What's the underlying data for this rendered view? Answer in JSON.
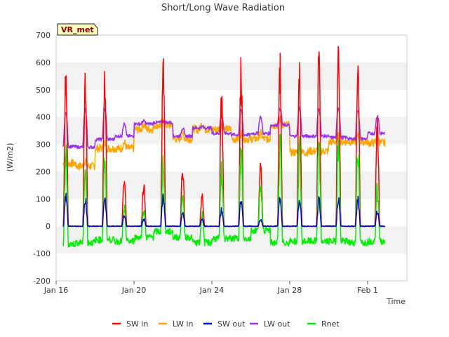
{
  "chart_data": {
    "type": "line",
    "title": "Short/Long Wave Radiation",
    "xlabel": "Time",
    "ylabel": "(W/m2)",
    "badge": "VR_met",
    "ylim": [
      -200,
      700
    ],
    "yticks": [
      -200,
      -100,
      0,
      100,
      200,
      300,
      400,
      500,
      600,
      700
    ],
    "xlim": [
      0,
      22.5
    ],
    "xticks": [
      {
        "label": "Jan 16",
        "day": 0
      },
      {
        "label": "Jan 20",
        "day": 4
      },
      {
        "label": "Jan 24",
        "day": 8
      },
      {
        "label": "Jan 28",
        "day": 12
      },
      {
        "label": "Feb 1",
        "day": 16
      }
    ],
    "grid": "horizontal alternating bands",
    "legend_position": "bottom",
    "series": [
      {
        "name": "SW in",
        "color": "#ff0000",
        "daily_peak": [
          565,
          545,
          545,
          165,
          145,
          555,
          200,
          105,
          450,
          550,
          210,
          575,
          575,
          590,
          615,
          595,
          360
        ]
      },
      {
        "name": "LW in",
        "color": "#ffa500",
        "daily_level": [
          230,
          220,
          285,
          285,
          355,
          370,
          320,
          355,
          355,
          320,
          320,
          370,
          270,
          275,
          310,
          310,
          305
        ]
      },
      {
        "name": "SW out",
        "color": "#0000cc",
        "daily_peak": [
          110,
          100,
          100,
          40,
          25,
          110,
          50,
          25,
          60,
          95,
          25,
          100,
          100,
          95,
          100,
          100,
          55
        ]
      },
      {
        "name": "LW out",
        "color": "#9933ee",
        "daily_base": [
          292,
          290,
          318,
          330,
          375,
          380,
          330,
          360,
          340,
          335,
          340,
          370,
          330,
          330,
          325,
          320,
          340
        ],
        "daily_peak": [
          415,
          430,
          430,
          375,
          385,
          385,
          360,
          365,
          410,
          425,
          400,
          430,
          435,
          430,
          435,
          425,
          405
        ]
      },
      {
        "name": "Rnet",
        "color": "#00ee00",
        "night_level": [
          -65,
          -60,
          -50,
          -55,
          -40,
          -20,
          -40,
          -60,
          -45,
          -45,
          -15,
          -60,
          -55,
          -55,
          -55,
          -60,
          -55
        ],
        "daily_peak": [
          250,
          210,
          240,
          60,
          60,
          230,
          100,
          40,
          200,
          260,
          140,
          285,
          270,
          275,
          310,
          290,
          125
        ]
      }
    ]
  }
}
